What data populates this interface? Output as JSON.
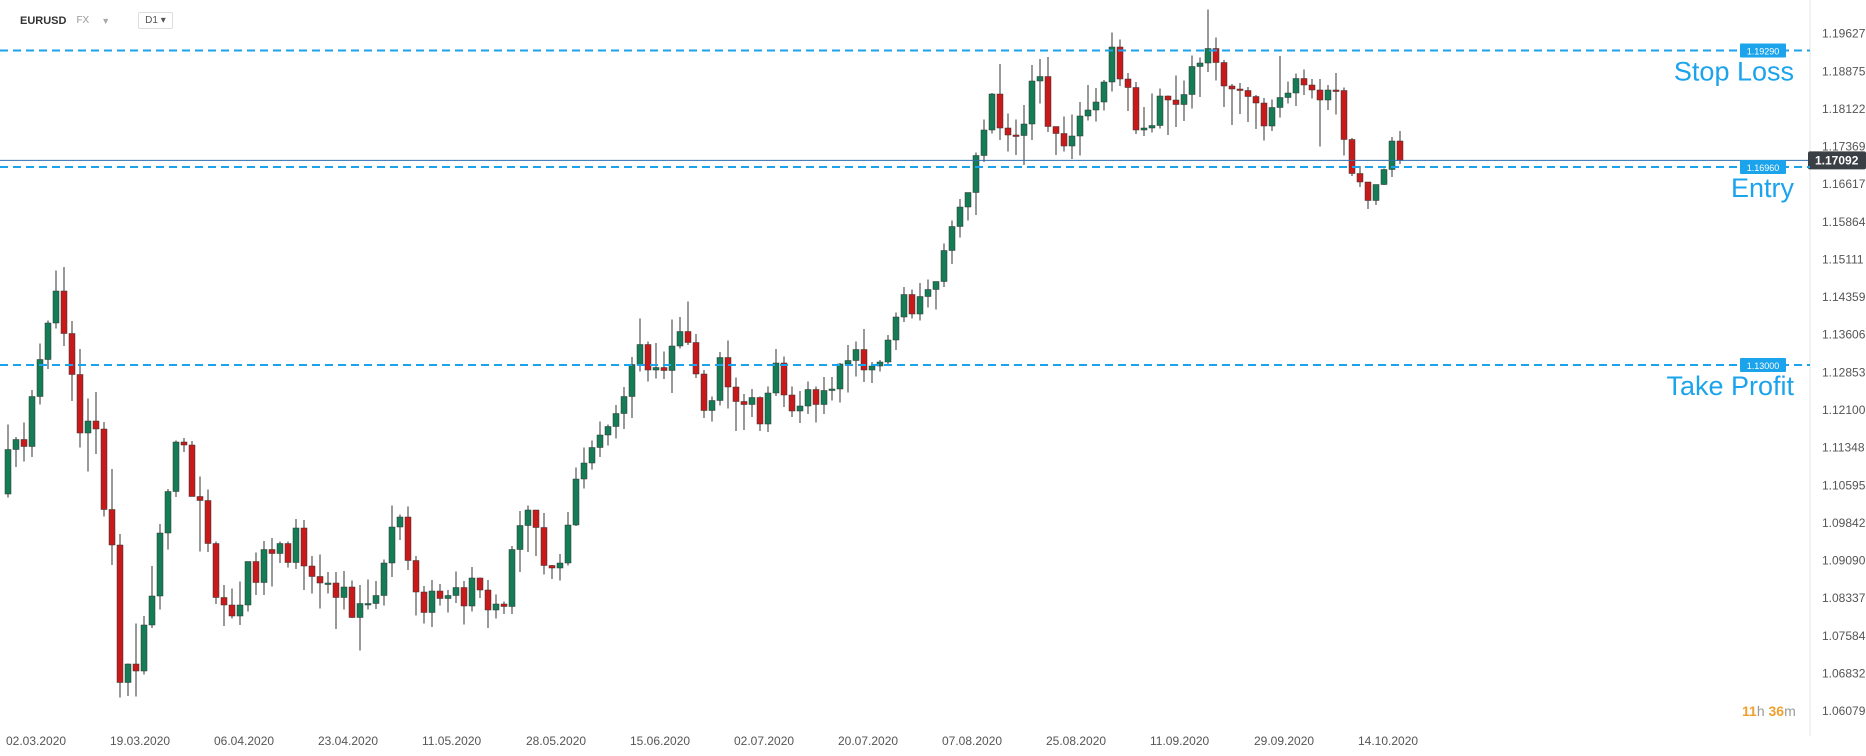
{
  "toolbar": {
    "symbol": "EURUSD",
    "market": "FX",
    "timeframe": "D1"
  },
  "countdown": {
    "hours": "11",
    "h_unit": "h",
    "minutes": "36",
    "m_unit": "m"
  },
  "colors": {
    "up": "#157d56",
    "down": "#c81a1a",
    "level": "#1ba3ec",
    "price_line": "#2f6fb0",
    "axis_text": "#555555",
    "label_text": "#1ba3ec"
  },
  "chart_data": {
    "type": "candlestick",
    "ylim": [
      1.058,
      1.201
    ],
    "y_ticks": [
      "1.19627",
      "1.18875",
      "1.18122",
      "1.17369",
      "1.16617",
      "1.15864",
      "1.15111",
      "1.14359",
      "1.13606",
      "1.12853",
      "1.12100",
      "1.11348",
      "1.10595",
      "1.09842",
      "1.09090",
      "1.08337",
      "1.07584",
      "1.06832",
      "1.06079"
    ],
    "x_ticks": [
      "02.03.2020",
      "19.03.2020",
      "06.04.2020",
      "23.04.2020",
      "11.05.2020",
      "28.05.2020",
      "15.06.2020",
      "02.07.2020",
      "20.07.2020",
      "07.08.2020",
      "25.08.2020",
      "11.09.2020",
      "29.09.2020",
      "14.10.2020"
    ],
    "x_tick_index": [
      0,
      13,
      26,
      39,
      52,
      65,
      78,
      91,
      104,
      117,
      130,
      143,
      156,
      169
    ],
    "current_price": "1.17092",
    "levels": [
      {
        "name": "Stop Loss",
        "value": 1.1929,
        "tag": "1.19290"
      },
      {
        "name": "Entry",
        "value": 1.1696,
        "tag": "1.16960"
      },
      {
        "name": "Take Profit",
        "value": 1.13,
        "tag": "1.13000"
      }
    ],
    "ohlc": [
      [
        1.1042,
        1.1181,
        1.1035,
        1.1131
      ],
      [
        1.1131,
        1.1156,
        1.1096,
        1.1151
      ],
      [
        1.1151,
        1.1185,
        1.1107,
        1.1137
      ],
      [
        1.1137,
        1.125,
        1.1116,
        1.1237
      ],
      [
        1.1237,
        1.1343,
        1.1221,
        1.1311
      ],
      [
        1.1311,
        1.1389,
        1.1292,
        1.1384
      ],
      [
        1.1384,
        1.1489,
        1.1373,
        1.1448
      ],
      [
        1.1448,
        1.1496,
        1.1338,
        1.1363
      ],
      [
        1.1363,
        1.1388,
        1.1228,
        1.1281
      ],
      [
        1.1281,
        1.1332,
        1.1135,
        1.1164
      ],
      [
        1.1164,
        1.1233,
        1.1087,
        1.1188
      ],
      [
        1.1188,
        1.1246,
        1.1122,
        1.1172
      ],
      [
        1.1172,
        1.1186,
        1.0997,
        1.1011
      ],
      [
        1.1011,
        1.1092,
        1.09,
        1.094
      ],
      [
        1.094,
        1.0962,
        1.0635,
        1.0665
      ],
      [
        1.0665,
        1.0703,
        1.0638,
        1.0702
      ],
      [
        1.0702,
        1.0783,
        1.0637,
        1.0688
      ],
      [
        1.0688,
        1.0798,
        1.0681,
        1.078
      ],
      [
        1.078,
        1.0898,
        1.0774,
        1.0838
      ],
      [
        1.0838,
        1.0982,
        1.0811,
        1.0964
      ],
      [
        1.0964,
        1.1052,
        1.0931,
        1.1047
      ],
      [
        1.1047,
        1.1149,
        1.1036,
        1.1146
      ],
      [
        1.1146,
        1.1154,
        1.1126,
        1.114
      ],
      [
        1.114,
        1.1148,
        1.1037,
        1.1037
      ],
      [
        1.1037,
        1.1077,
        1.0927,
        1.1029
      ],
      [
        1.1029,
        1.1051,
        1.0926,
        1.0943
      ],
      [
        1.0943,
        1.0947,
        1.0822,
        1.0835
      ],
      [
        1.0835,
        1.086,
        1.0778,
        1.082
      ],
      [
        1.082,
        1.0853,
        1.0793,
        1.0798
      ],
      [
        1.0798,
        1.0867,
        1.078,
        1.082
      ],
      [
        1.082,
        1.0906,
        1.0807,
        1.0907
      ],
      [
        1.0907,
        1.0925,
        1.084,
        1.0865
      ],
      [
        1.0865,
        1.0948,
        1.084,
        1.0931
      ],
      [
        1.0931,
        1.0954,
        1.0857,
        1.0923
      ],
      [
        1.0923,
        1.0947,
        1.0904,
        1.0943
      ],
      [
        1.0943,
        1.0947,
        1.0895,
        1.0905
      ],
      [
        1.0905,
        1.0992,
        1.0892,
        1.0974
      ],
      [
        1.0974,
        1.099,
        1.085,
        1.0898
      ],
      [
        1.0898,
        1.0918,
        1.0843,
        1.0877
      ],
      [
        1.0877,
        1.0921,
        1.0813,
        1.0864
      ],
      [
        1.0864,
        1.0886,
        1.0843,
        1.0864
      ],
      [
        1.0864,
        1.0886,
        1.0772,
        1.0835
      ],
      [
        1.0835,
        1.0888,
        1.0811,
        1.0856
      ],
      [
        1.0856,
        1.0869,
        1.0794,
        1.0795
      ],
      [
        1.0795,
        1.086,
        1.0729,
        1.0823
      ],
      [
        1.0823,
        1.0871,
        1.0811,
        1.0823
      ],
      [
        1.0823,
        1.0868,
        1.0812,
        1.0839
      ],
      [
        1.0839,
        1.0911,
        1.0819,
        1.0904
      ],
      [
        1.0904,
        1.1019,
        1.0876,
        1.0976
      ],
      [
        1.0976,
        1.1001,
        1.095,
        1.0996
      ],
      [
        1.0996,
        1.1017,
        1.089,
        1.0909
      ],
      [
        1.0909,
        1.0918,
        1.0799,
        1.0846
      ],
      [
        1.0846,
        1.0858,
        1.0783,
        1.0805
      ],
      [
        1.0805,
        1.087,
        1.0776,
        1.0848
      ],
      [
        1.0848,
        1.0862,
        1.0819,
        1.0833
      ],
      [
        1.0833,
        1.085,
        1.0805,
        1.0839
      ],
      [
        1.0839,
        1.0887,
        1.0824,
        1.0855
      ],
      [
        1.0855,
        1.0868,
        1.0781,
        1.0818
      ],
      [
        1.0818,
        1.0896,
        1.0807,
        1.0874
      ],
      [
        1.0874,
        1.0875,
        1.0834,
        1.085
      ],
      [
        1.085,
        1.087,
        1.0774,
        1.081
      ],
      [
        1.081,
        1.0841,
        1.0793,
        1.0822
      ],
      [
        1.0822,
        1.0827,
        1.0802,
        1.0817
      ],
      [
        1.0817,
        1.0938,
        1.0802,
        1.0931
      ],
      [
        1.0931,
        1.1008,
        1.0886,
        1.0979
      ],
      [
        1.0979,
        1.1019,
        1.0926,
        1.101
      ],
      [
        1.101,
        1.101,
        1.0918,
        1.0975
      ],
      [
        1.0975,
        1.1004,
        1.0881,
        1.0899
      ],
      [
        1.0899,
        1.09,
        1.0872,
        1.0894
      ],
      [
        1.0894,
        1.0922,
        1.0869,
        1.0904
      ],
      [
        1.0904,
        1.1006,
        1.0899,
        1.098
      ],
      [
        1.098,
        1.1095,
        1.0978,
        1.1072
      ],
      [
        1.1072,
        1.1135,
        1.1053,
        1.1104
      ],
      [
        1.1104,
        1.1149,
        1.1091,
        1.1135
      ],
      [
        1.1135,
        1.1187,
        1.1116,
        1.116
      ],
      [
        1.116,
        1.1181,
        1.1139,
        1.1177
      ],
      [
        1.1177,
        1.122,
        1.1153,
        1.1203
      ],
      [
        1.1203,
        1.1256,
        1.1172,
        1.1237
      ],
      [
        1.1237,
        1.1316,
        1.1194,
        1.1301
      ],
      [
        1.1301,
        1.1393,
        1.1287,
        1.1341
      ],
      [
        1.1341,
        1.1347,
        1.1267,
        1.129
      ],
      [
        1.129,
        1.1344,
        1.1273,
        1.1295
      ],
      [
        1.1295,
        1.1327,
        1.1272,
        1.1289
      ],
      [
        1.1289,
        1.1391,
        1.1244,
        1.1338
      ],
      [
        1.1338,
        1.1396,
        1.1333,
        1.1367
      ],
      [
        1.1367,
        1.1427,
        1.134,
        1.1345
      ],
      [
        1.1345,
        1.1362,
        1.1274,
        1.1282
      ],
      [
        1.1282,
        1.129,
        1.1194,
        1.1209
      ],
      [
        1.1209,
        1.1237,
        1.1187,
        1.1229
      ],
      [
        1.1229,
        1.1326,
        1.1219,
        1.1315
      ],
      [
        1.1315,
        1.1349,
        1.1213,
        1.1256
      ],
      [
        1.1256,
        1.1275,
        1.1168,
        1.1227
      ],
      [
        1.1227,
        1.1242,
        1.117,
        1.1221
      ],
      [
        1.1221,
        1.1252,
        1.1196,
        1.1235
      ],
      [
        1.1235,
        1.1237,
        1.1168,
        1.1182
      ],
      [
        1.1182,
        1.1257,
        1.1166,
        1.1244
      ],
      [
        1.1244,
        1.1332,
        1.1238,
        1.1304
      ],
      [
        1.1304,
        1.1317,
        1.1216,
        1.124
      ],
      [
        1.124,
        1.1257,
        1.1196,
        1.1208
      ],
      [
        1.1208,
        1.1248,
        1.1184,
        1.1218
      ],
      [
        1.1218,
        1.1267,
        1.1202,
        1.1251
      ],
      [
        1.1251,
        1.1257,
        1.1185,
        1.1221
      ],
      [
        1.1221,
        1.1276,
        1.1202,
        1.1249
      ],
      [
        1.1249,
        1.1276,
        1.1229,
        1.1252
      ],
      [
        1.1252,
        1.1304,
        1.1225,
        1.1302
      ],
      [
        1.1302,
        1.134,
        1.1245,
        1.1309
      ],
      [
        1.1309,
        1.1347,
        1.1277,
        1.1331
      ],
      [
        1.1331,
        1.1372,
        1.1266,
        1.129
      ],
      [
        1.129,
        1.1306,
        1.1264,
        1.1298
      ],
      [
        1.1298,
        1.131,
        1.1287,
        1.1306
      ],
      [
        1.1306,
        1.136,
        1.1302,
        1.135
      ],
      [
        1.135,
        1.1405,
        1.133,
        1.1396
      ],
      [
        1.1396,
        1.1456,
        1.1386,
        1.1441
      ],
      [
        1.1441,
        1.1451,
        1.1393,
        1.1402
      ],
      [
        1.1402,
        1.1464,
        1.1389,
        1.1437
      ],
      [
        1.1437,
        1.1471,
        1.1415,
        1.1451
      ],
      [
        1.1451,
        1.1465,
        1.1411,
        1.1467
      ],
      [
        1.1467,
        1.1543,
        1.1456,
        1.1529
      ],
      [
        1.1529,
        1.1589,
        1.1502,
        1.1577
      ],
      [
        1.1577,
        1.1632,
        1.1555,
        1.1616
      ],
      [
        1.1616,
        1.1633,
        1.1589,
        1.1645
      ],
      [
        1.1645,
        1.1725,
        1.16,
        1.1719
      ],
      [
        1.1719,
        1.1791,
        1.1706,
        1.177
      ],
      [
        1.177,
        1.1844,
        1.1763,
        1.1842
      ],
      [
        1.1842,
        1.1902,
        1.175,
        1.1774
      ],
      [
        1.1774,
        1.1803,
        1.1727,
        1.176
      ],
      [
        1.176,
        1.1791,
        1.172,
        1.1759
      ],
      [
        1.1759,
        1.182,
        1.17,
        1.1782
      ],
      [
        1.1782,
        1.19,
        1.175,
        1.1868
      ],
      [
        1.1868,
        1.1912,
        1.1823,
        1.1877
      ],
      [
        1.1877,
        1.1916,
        1.1766,
        1.1777
      ],
      [
        1.1777,
        1.1777,
        1.172,
        1.1763
      ],
      [
        1.1763,
        1.1797,
        1.1727,
        1.1738
      ],
      [
        1.1738,
        1.1801,
        1.1712,
        1.1758
      ],
      [
        1.1758,
        1.1826,
        1.1719,
        1.1798
      ],
      [
        1.1798,
        1.186,
        1.1789,
        1.181
      ],
      [
        1.181,
        1.1854,
        1.1787,
        1.1826
      ],
      [
        1.1826,
        1.187,
        1.1809,
        1.1866
      ],
      [
        1.1866,
        1.1965,
        1.1847,
        1.1936
      ],
      [
        1.1936,
        1.1951,
        1.1858,
        1.1872
      ],
      [
        1.1872,
        1.1884,
        1.1808,
        1.1855
      ],
      [
        1.1855,
        1.1866,
        1.1762,
        1.177
      ],
      [
        1.177,
        1.1816,
        1.1758,
        1.1774
      ],
      [
        1.1774,
        1.1843,
        1.1765,
        1.1779
      ],
      [
        1.1779,
        1.1853,
        1.1773,
        1.1838
      ],
      [
        1.1838,
        1.1839,
        1.176,
        1.183
      ],
      [
        1.183,
        1.1879,
        1.1776,
        1.1821
      ],
      [
        1.1821,
        1.1869,
        1.1788,
        1.1841
      ],
      [
        1.1841,
        1.1919,
        1.1813,
        1.1897
      ],
      [
        1.1897,
        1.1915,
        1.1836,
        1.1904
      ],
      [
        1.1904,
        1.2011,
        1.1886,
        1.1933
      ],
      [
        1.1933,
        1.1955,
        1.1869,
        1.1905
      ],
      [
        1.1905,
        1.191,
        1.1816,
        1.1858
      ],
      [
        1.1858,
        1.1862,
        1.178,
        1.1852
      ],
      [
        1.1852,
        1.1864,
        1.1802,
        1.1849
      ],
      [
        1.1849,
        1.1856,
        1.1786,
        1.1837
      ],
      [
        1.1837,
        1.184,
        1.1772,
        1.1824
      ],
      [
        1.1824,
        1.1834,
        1.1749,
        1.1778
      ],
      [
        1.1778,
        1.1831,
        1.1768,
        1.1815
      ],
      [
        1.1815,
        1.1918,
        1.1795,
        1.1835
      ],
      [
        1.1835,
        1.1867,
        1.1823,
        1.1844
      ],
      [
        1.1844,
        1.1883,
        1.1818,
        1.1873
      ],
      [
        1.1873,
        1.1891,
        1.184,
        1.186
      ],
      [
        1.186,
        1.1872,
        1.1833,
        1.185
      ],
      [
        1.185,
        1.1872,
        1.1737,
        1.183
      ],
      [
        1.183,
        1.186,
        1.181,
        1.185
      ],
      [
        1.185,
        1.1884,
        1.1801,
        1.1849
      ],
      [
        1.1849,
        1.1855,
        1.1719,
        1.1751
      ],
      [
        1.1751,
        1.1754,
        1.1678,
        1.1683
      ],
      [
        1.1683,
        1.1698,
        1.1656,
        1.1666
      ],
      [
        1.1666,
        1.1664,
        1.1612,
        1.1629
      ],
      [
        1.1629,
        1.1658,
        1.162,
        1.1661
      ],
      [
        1.1661,
        1.1693,
        1.166,
        1.1691
      ],
      [
        1.1691,
        1.1756,
        1.1676,
        1.1748
      ],
      [
        1.1748,
        1.1768,
        1.1702,
        1.1709
      ]
    ]
  }
}
